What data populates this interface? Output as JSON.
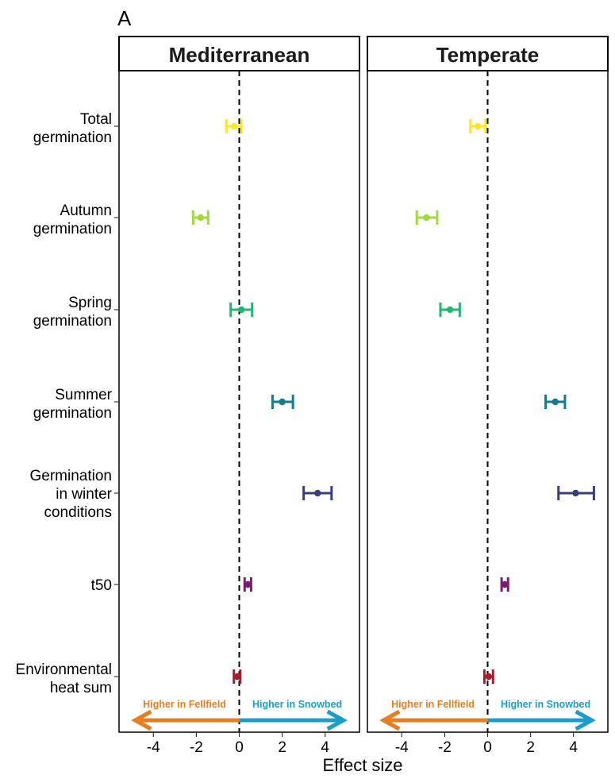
{
  "chart_data": {
    "type": "errorbar",
    "panel_label": "A",
    "facets": [
      "Mediterranean",
      "Temperate"
    ],
    "categories": [
      [
        "Total",
        "germination"
      ],
      [
        "Autumn",
        "germination"
      ],
      [
        "Spring",
        "germination"
      ],
      [
        "Summer",
        "germination"
      ],
      [
        "Germination",
        "in winter",
        "conditions"
      ],
      [
        "t50"
      ],
      [
        "Environmental",
        "heat sum"
      ]
    ],
    "colors": [
      "#fde725",
      "#a0da39",
      "#1fb873",
      "#1a7a8c",
      "#353f7b",
      "#7b1a73",
      "#a81d2e"
    ],
    "xlabel": "Effect size",
    "xlim": [
      -5.6,
      5.6
    ],
    "xticks": [
      -4,
      -2,
      0,
      2,
      4
    ],
    "xtick_labels": [
      "-4",
      "-2",
      "0",
      "2",
      "4"
    ],
    "reference_line": 0,
    "series": [
      {
        "facet": "Mediterranean",
        "estimates": [
          -0.25,
          -1.8,
          0.1,
          2.0,
          3.65,
          0.4,
          -0.1
        ],
        "lower": [
          -0.6,
          -2.15,
          -0.4,
          1.55,
          3.0,
          0.25,
          -0.25
        ],
        "upper": [
          0.1,
          -1.45,
          0.6,
          2.5,
          4.3,
          0.55,
          0.05
        ]
      },
      {
        "facet": "Temperate",
        "estimates": [
          -0.45,
          -2.85,
          -1.75,
          3.15,
          4.1,
          0.8,
          0.05
        ],
        "lower": [
          -0.8,
          -3.3,
          -2.2,
          2.7,
          3.3,
          0.65,
          -0.15
        ],
        "upper": [
          -0.1,
          -2.35,
          -1.3,
          3.6,
          4.95,
          0.95,
          0.25
        ]
      }
    ],
    "annotations": {
      "left_arrow_label": "Higher in Fellfield",
      "right_arrow_label": "Higher in Snowbed",
      "left_color": "#e67e22",
      "right_color": "#1a9dc8"
    },
    "grid": false
  }
}
